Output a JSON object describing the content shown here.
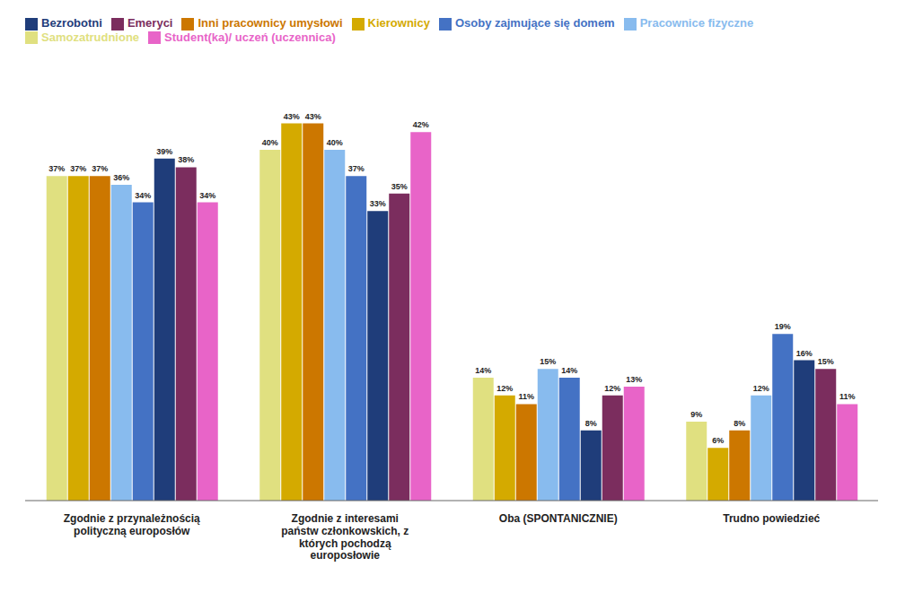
{
  "chart_data": {
    "type": "bar",
    "categories": [
      "Zgodnie z przynależnością\npolityczną europosłów",
      "Zgodnie z interesami\npaństw członkowskich, z\nktórych pochodzą\neuroposłowie",
      "Oba (SPONTANICZNIE)",
      "Trudno powiedzieć"
    ],
    "series": [
      {
        "name": "Samozatrudnione",
        "color": "#e0e080",
        "values": [
          37,
          40,
          14,
          9
        ],
        "value_labels": [
          "37%",
          "40%",
          "14%",
          "9%"
        ]
      },
      {
        "name": "Kierownicy",
        "color": "#d4aa00",
        "values": [
          37,
          43,
          12,
          6
        ],
        "value_labels": [
          "37%",
          "43%",
          "12%",
          "6%"
        ]
      },
      {
        "name": "Inni pracownicy umysłowi",
        "color": "#cc7700",
        "values": [
          37,
          43,
          11,
          8
        ],
        "value_labels": [
          "37%",
          "43%",
          "11%",
          "8%"
        ]
      },
      {
        "name": "Pracownice fizyczne",
        "color": "#88bbee",
        "values": [
          36,
          40,
          15,
          12
        ],
        "value_labels": [
          "36%",
          "40%",
          "15%",
          "12%"
        ]
      },
      {
        "name": "Osoby zajmujące się domem",
        "color": "#4472c4",
        "values": [
          34,
          37,
          14,
          19
        ],
        "value_labels": [
          "34%",
          "37%",
          "14%",
          "19%"
        ]
      },
      {
        "name": "Bezrobotni",
        "color": "#1f3d7a",
        "values": [
          39,
          33,
          8,
          16
        ],
        "value_labels": [
          "39%",
          "33%",
          "8%",
          "16%"
        ]
      },
      {
        "name": "Emeryci",
        "color": "#7b2d5e",
        "values": [
          38,
          35,
          12,
          15
        ],
        "value_labels": [
          "38%",
          "35%",
          "12%",
          "15%"
        ]
      },
      {
        "name": "Student(ka)/ uczeń (uczennica)",
        "color": "#e864c8",
        "values": [
          34,
          42,
          13,
          11
        ],
        "value_labels": [
          "34%",
          "42%",
          "13%",
          "11%"
        ]
      }
    ],
    "ylim": [
      0,
      50
    ],
    "tick_labels": "x",
    "data_labels": true,
    "legend": "upper left",
    "grid": false
  }
}
